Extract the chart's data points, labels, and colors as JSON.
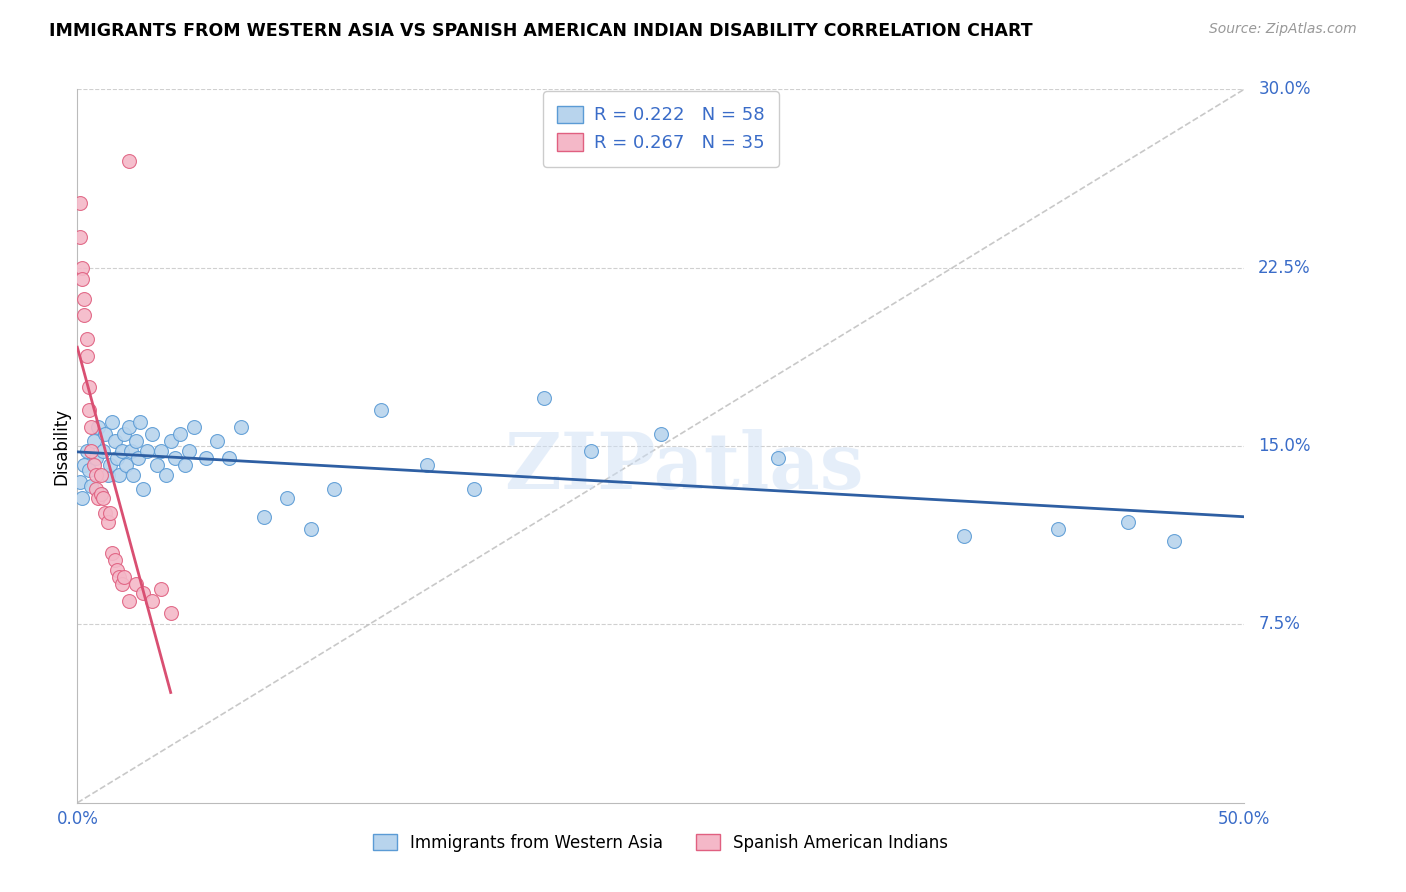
{
  "title": "IMMIGRANTS FROM WESTERN ASIA VS SPANISH AMERICAN INDIAN DISABILITY CORRELATION CHART",
  "source": "Source: ZipAtlas.com",
  "ylabel": "Disability",
  "watermark": "ZIPatlas",
  "xlim": [
    0.0,
    0.5
  ],
  "ylim": [
    0.0,
    0.3
  ],
  "ytick_right": [
    0.075,
    0.15,
    0.225,
    0.3
  ],
  "ytick_right_labels": [
    "7.5%",
    "15.0%",
    "22.5%",
    "30.0%"
  ],
  "series1_color": "#b8d4ed",
  "series1_edge": "#5b9bd5",
  "series1_line": "#2e5fa3",
  "series2_color": "#f4b8c8",
  "series2_edge": "#e06080",
  "series2_line": "#d94f72",
  "series1_label": "Immigrants from Western Asia",
  "series2_label": "Spanish American Indians",
  "R1": 0.222,
  "N1": 58,
  "R2": 0.267,
  "N2": 35,
  "series1_x": [
    0.001,
    0.002,
    0.003,
    0.004,
    0.005,
    0.006,
    0.007,
    0.008,
    0.009,
    0.01,
    0.011,
    0.012,
    0.013,
    0.014,
    0.015,
    0.016,
    0.017,
    0.018,
    0.019,
    0.02,
    0.021,
    0.022,
    0.023,
    0.024,
    0.025,
    0.026,
    0.027,
    0.028,
    0.03,
    0.032,
    0.034,
    0.036,
    0.038,
    0.04,
    0.042,
    0.044,
    0.046,
    0.048,
    0.05,
    0.055,
    0.06,
    0.065,
    0.07,
    0.08,
    0.09,
    0.1,
    0.11,
    0.13,
    0.15,
    0.17,
    0.2,
    0.22,
    0.25,
    0.3,
    0.38,
    0.42,
    0.45,
    0.47
  ],
  "series1_y": [
    0.135,
    0.128,
    0.142,
    0.148,
    0.14,
    0.133,
    0.152,
    0.145,
    0.158,
    0.13,
    0.148,
    0.155,
    0.138,
    0.142,
    0.16,
    0.152,
    0.145,
    0.138,
    0.148,
    0.155,
    0.142,
    0.158,
    0.148,
    0.138,
    0.152,
    0.145,
    0.16,
    0.132,
    0.148,
    0.155,
    0.142,
    0.148,
    0.138,
    0.152,
    0.145,
    0.155,
    0.142,
    0.148,
    0.158,
    0.145,
    0.152,
    0.145,
    0.158,
    0.12,
    0.128,
    0.115,
    0.132,
    0.165,
    0.142,
    0.132,
    0.17,
    0.148,
    0.155,
    0.145,
    0.112,
    0.115,
    0.118,
    0.11
  ],
  "series2_x": [
    0.001,
    0.001,
    0.002,
    0.002,
    0.003,
    0.003,
    0.004,
    0.004,
    0.005,
    0.005,
    0.006,
    0.006,
    0.007,
    0.008,
    0.008,
    0.009,
    0.01,
    0.01,
    0.011,
    0.012,
    0.013,
    0.014,
    0.015,
    0.016,
    0.017,
    0.018,
    0.019,
    0.02,
    0.022,
    0.025,
    0.028,
    0.032,
    0.036,
    0.04,
    0.022
  ],
  "series2_y": [
    0.252,
    0.238,
    0.225,
    0.22,
    0.212,
    0.205,
    0.195,
    0.188,
    0.175,
    0.165,
    0.158,
    0.148,
    0.142,
    0.138,
    0.132,
    0.128,
    0.138,
    0.13,
    0.128,
    0.122,
    0.118,
    0.122,
    0.105,
    0.102,
    0.098,
    0.095,
    0.092,
    0.095,
    0.27,
    0.092,
    0.088,
    0.085,
    0.09,
    0.08,
    0.085
  ],
  "background_color": "#ffffff",
  "grid_color": "#d0d0d0",
  "ref_line_color": "#bbbbbb"
}
